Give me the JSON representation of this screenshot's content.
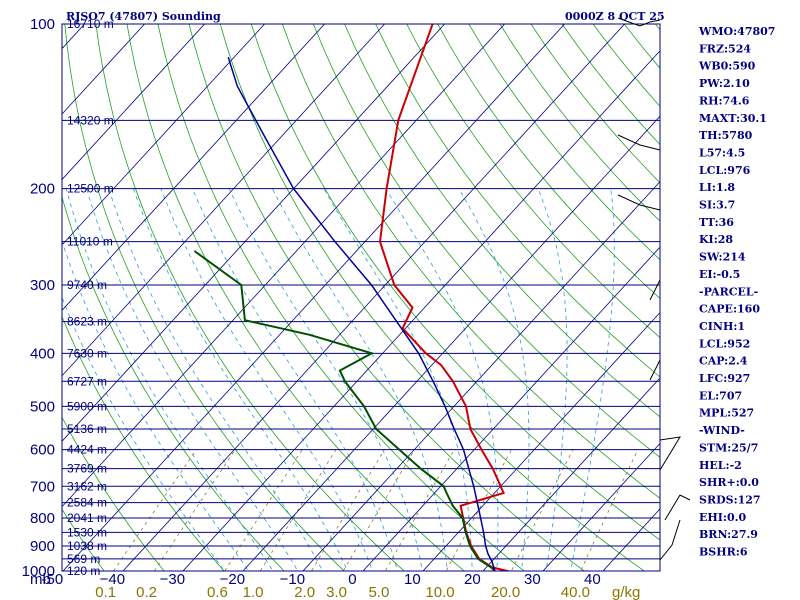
{
  "chart_data": {
    "type": "skew-t",
    "title_left": "RJSO7 (47807) Sounding",
    "title_right": "0000Z  8 OCT 25",
    "pressure_unit": "mb",
    "mixing_unit": "g/kg",
    "pressure_levels": [
      100,
      200,
      300,
      400,
      500,
      600,
      700,
      800,
      900,
      1000
    ],
    "temperature_ticks": [
      -50,
      -40,
      -30,
      -20,
      -10,
      0,
      10,
      20,
      30,
      40
    ],
    "temperature_tick_labels": [
      "-50",
      "−40",
      "−30",
      "−20",
      "−10",
      "0",
      "10",
      "20",
      "30",
      "40"
    ],
    "mixing_ratio_labels": [
      "0.1",
      "0.2",
      "0.6",
      "1.0",
      "2.0",
      "3.0",
      "5.0",
      "10.0",
      "20.0",
      "40.0"
    ],
    "mixing_ratio_values": [
      0.1,
      0.2,
      0.6,
      1.0,
      2.0,
      3.0,
      5.0,
      10.0,
      20.0,
      40.0
    ],
    "height_levels": [
      {
        "p": 100,
        "label": "16710 m"
      },
      {
        "p": 150,
        "label": "14320 m"
      },
      {
        "p": 200,
        "label": "12500 m"
      },
      {
        "p": 250,
        "label": "11010 m"
      },
      {
        "p": 300,
        "label": "9740 m"
      },
      {
        "p": 350,
        "label": "8623 m"
      },
      {
        "p": 400,
        "label": "7630 m"
      },
      {
        "p": 450,
        "label": "6727 m"
      },
      {
        "p": 500,
        "label": "5900 m"
      },
      {
        "p": 550,
        "label": "5136 m"
      },
      {
        "p": 600,
        "label": "4424 m"
      },
      {
        "p": 650,
        "label": "3769 m"
      },
      {
        "p": 700,
        "label": "3162 m"
      },
      {
        "p": 750,
        "label": "2584 m"
      },
      {
        "p": 800,
        "label": "2041 m"
      },
      {
        "p": 850,
        "label": "1530 m"
      },
      {
        "p": 900,
        "label": "1038 m"
      },
      {
        "p": 950,
        "label": "569 m"
      },
      {
        "p": 1000,
        "label": "120 m"
      }
    ],
    "series": [
      {
        "name": "temperature",
        "color": "#cc0000",
        "points": [
          [
            1004,
            24.8
          ],
          [
            985,
            21
          ],
          [
            950,
            17.5
          ],
          [
            900,
            14.2
          ],
          [
            850,
            11.3
          ],
          [
            800,
            8.6
          ],
          [
            760,
            6.3
          ],
          [
            720,
            11.5
          ],
          [
            700,
            10
          ],
          [
            650,
            6
          ],
          [
            600,
            1.2
          ],
          [
            550,
            -3.8
          ],
          [
            500,
            -8
          ],
          [
            450,
            -14
          ],
          [
            420,
            -18.5
          ],
          [
            400,
            -22.8
          ],
          [
            360,
            -30.5
          ],
          [
            330,
            -32
          ],
          [
            300,
            -38.5
          ],
          [
            250,
            -47.5
          ],
          [
            200,
            -54.5
          ],
          [
            150,
            -63
          ],
          [
            100,
            -72
          ],
          [
            98,
            -72.5
          ]
        ]
      },
      {
        "name": "dewpoint",
        "color": "#005000",
        "points": [
          [
            1004,
            22.3
          ],
          [
            985,
            20.8
          ],
          [
            950,
            17.3
          ],
          [
            900,
            14
          ],
          [
            850,
            11.2
          ],
          [
            800,
            8.5
          ],
          [
            760,
            5
          ],
          [
            720,
            2
          ],
          [
            700,
            0.5
          ],
          [
            650,
            -6
          ],
          [
            600,
            -12.5
          ],
          [
            550,
            -19.5
          ],
          [
            500,
            -25
          ],
          [
            450,
            -32
          ],
          [
            430,
            -34.5
          ],
          [
            400,
            -31.8
          ],
          [
            370,
            -45
          ],
          [
            348,
            -58
          ],
          [
            300,
            -64
          ],
          [
            260,
            -77
          ]
        ]
      },
      {
        "name": "parcel",
        "color": "#00009c",
        "points": [
          [
            1000,
            22
          ],
          [
            960,
            20
          ],
          [
            930,
            18.2
          ],
          [
            900,
            16.6
          ],
          [
            850,
            14.2
          ],
          [
            800,
            11.5
          ],
          [
            750,
            8.6
          ],
          [
            700,
            5.5
          ],
          [
            650,
            2.0
          ],
          [
            600,
            -1.8
          ],
          [
            550,
            -6.5
          ],
          [
            500,
            -11.5
          ],
          [
            450,
            -17.3
          ],
          [
            400,
            -24
          ],
          [
            350,
            -32.5
          ],
          [
            300,
            -42.3
          ],
          [
            250,
            -55
          ],
          [
            200,
            -70
          ],
          [
            160,
            -83
          ],
          [
            130,
            -95
          ],
          [
            115,
            -101
          ]
        ]
      }
    ],
    "indices": [
      "WMO:47807",
      "FRZ:524",
      "WB0:590",
      "PW:2.10",
      "RH:74.6",
      "MAXT:30.1",
      "TH:5780",
      "L57:4.5",
      "LCL:976",
      "LI:1.8",
      "SI:3.7",
      "TT:36",
      "KI:28",
      "SW:214",
      "EI:-0.5",
      "-PARCEL-",
      "CAPE:160",
      "CINH:1",
      "LCL:952",
      "CAP:2.4",
      "LFC:927",
      "EL:707",
      "MPL:527",
      "-WIND-",
      "STM:25/7",
      "HEL:-2",
      "SHR+:0.0",
      "SRDS:127",
      "EHI:0.0",
      "BRN:27.9",
      "BSHR:6"
    ],
    "colors": {
      "isobar": "#000080",
      "isotherm": "#000080",
      "dry_adiabat": "#22a022",
      "moist_adiabat": "#2a9fd0",
      "mixing_ratio": "#8a7a2a",
      "wind": "#000000"
    }
  }
}
